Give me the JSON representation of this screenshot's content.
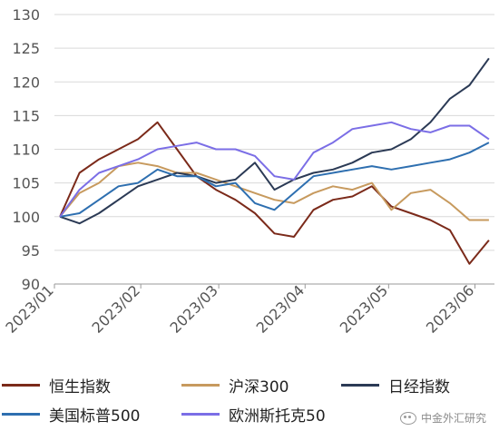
{
  "chart_data": {
    "type": "line",
    "title": "",
    "xlabel": "",
    "ylabel": "",
    "ylim": [
      90,
      130
    ],
    "yticks": [
      90,
      95,
      100,
      105,
      110,
      115,
      120,
      125,
      130
    ],
    "xticks": [
      "2023/01",
      "2023/02",
      "2023/03",
      "2023/04",
      "2023/05",
      "2023/06"
    ],
    "grid": "horizontal",
    "legend_position": "bottom",
    "x": [
      "2023-01-03",
      "2023-01-10",
      "2023-01-17",
      "2023-01-24",
      "2023-01-31",
      "2023-02-07",
      "2023-02-14",
      "2023-02-21",
      "2023-02-28",
      "2023-03-07",
      "2023-03-14",
      "2023-03-21",
      "2023-03-28",
      "2023-04-04",
      "2023-04-11",
      "2023-04-18",
      "2023-04-25",
      "2023-05-02",
      "2023-05-09",
      "2023-05-16",
      "2023-05-23",
      "2023-05-30",
      "2023-06-06"
    ],
    "series": [
      {
        "name": "恒生指数",
        "color": "#7b2a1a",
        "values": [
          100,
          106.5,
          108.5,
          110,
          111.5,
          114,
          110,
          106,
          104,
          102.5,
          100.5,
          97.5,
          97,
          101,
          102.5,
          103,
          104.5,
          101.5,
          100.5,
          99.5,
          98,
          93,
          96.5
        ]
      },
      {
        "name": "沪深300",
        "color": "#c79a5e",
        "values": [
          100,
          103.5,
          105,
          107.5,
          108,
          107.5,
          106.5,
          106.5,
          105.5,
          104.5,
          103.5,
          102.5,
          102,
          103.5,
          104.5,
          104,
          105,
          101,
          103.5,
          104,
          102,
          99.5,
          99.5
        ]
      },
      {
        "name": "日经指数",
        "color": "#2b3a55",
        "values": [
          100,
          99,
          100.5,
          102.5,
          104.5,
          105.5,
          106.5,
          106,
          105,
          105.5,
          108,
          104,
          105.5,
          106.5,
          107,
          108,
          109.5,
          110,
          111.5,
          114,
          117.5,
          119.5,
          123.5
        ]
      },
      {
        "name": "美国标普500",
        "color": "#2e6fb0",
        "values": [
          100,
          100.5,
          102.5,
          104.5,
          105,
          107,
          106,
          106,
          104.5,
          105,
          102,
          101,
          103.5,
          106,
          106.5,
          107,
          107.5,
          107,
          107.5,
          108,
          108.5,
          109.5,
          111
        ]
      },
      {
        "name": "欧洲斯托克50",
        "color": "#7b6ee6",
        "values": [
          100,
          104,
          106.5,
          107.5,
          108.5,
          110,
          110.5,
          111,
          110,
          110,
          109,
          106,
          105.5,
          109.5,
          111,
          113,
          113.5,
          114,
          113,
          112.5,
          113.5,
          113.5,
          111.5
        ]
      }
    ]
  },
  "watermark": "中金外汇研究"
}
